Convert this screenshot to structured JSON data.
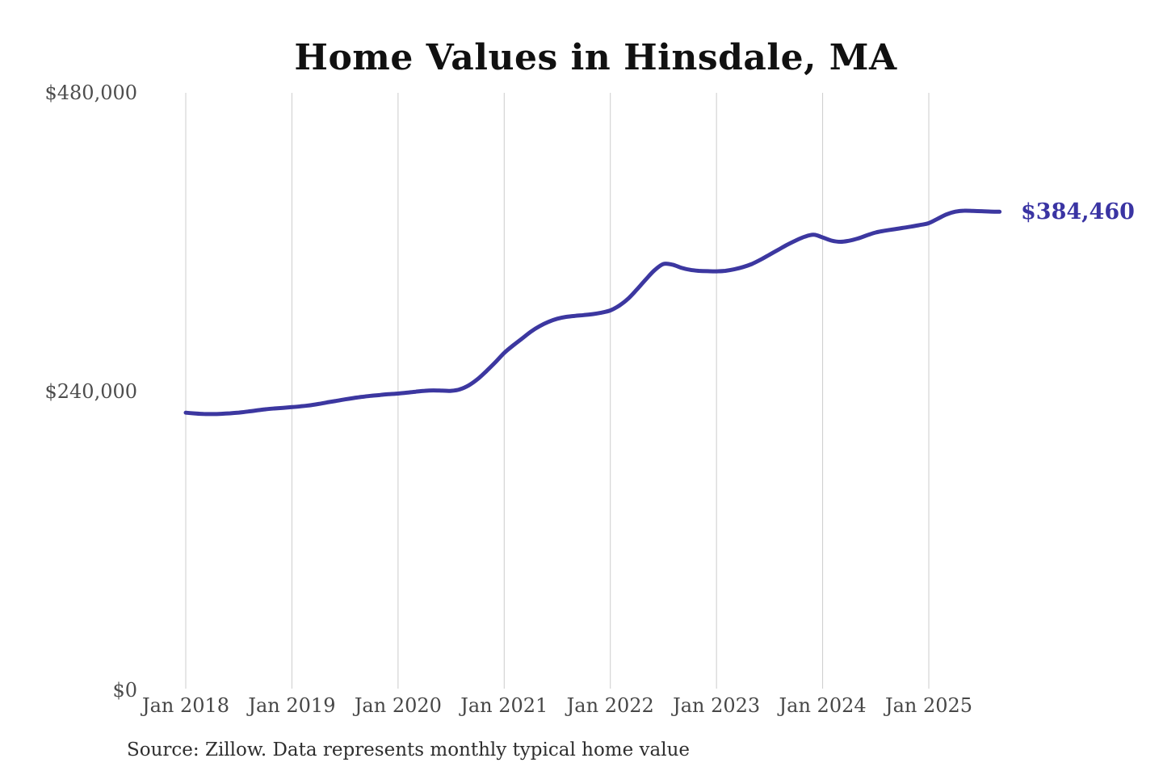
{
  "page": {
    "title": "Home Values in Hinsdale, MA",
    "source_note": "Source: Zillow. Data represents monthly typical home value"
  },
  "chart_data": {
    "type": "line",
    "title": "Home Values in Hinsdale, MA",
    "series_name": "Monthly typical home value",
    "unit": "USD",
    "ylim": [
      0,
      480000
    ],
    "grid": "vertical-yearly",
    "legend": "none",
    "end_label": "$384,460",
    "final_value": 384460,
    "line_color": "#3c37a0",
    "grid_color": "#cccccc",
    "end_label_color": "#3a34a3",
    "y_ticks": [
      {
        "value": 0,
        "label": "$0"
      },
      {
        "value": 240000,
        "label": "$240,000"
      },
      {
        "value": 480000,
        "label": "$480,000"
      }
    ],
    "x_tick_labels": [
      "Jan 2018",
      "Jan 2019",
      "Jan 2020",
      "Jan 2021",
      "Jan 2022",
      "Jan 2023",
      "Jan 2024",
      "Jan 2025"
    ],
    "months": [
      "Jan 2018",
      "Feb 2018",
      "Mar 2018",
      "Apr 2018",
      "May 2018",
      "Jun 2018",
      "Jul 2018",
      "Aug 2018",
      "Sep 2018",
      "Oct 2018",
      "Nov 2018",
      "Dec 2018",
      "Jan 2019",
      "Feb 2019",
      "Mar 2019",
      "Apr 2019",
      "May 2019",
      "Jun 2019",
      "Jul 2019",
      "Aug 2019",
      "Sep 2019",
      "Oct 2019",
      "Nov 2019",
      "Dec 2019",
      "Jan 2020",
      "Feb 2020",
      "Mar 2020",
      "Apr 2020",
      "May 2020",
      "Jun 2020",
      "Jul 2020",
      "Aug 2020",
      "Sep 2020",
      "Oct 2020",
      "Nov 2020",
      "Dec 2020",
      "Jan 2021",
      "Feb 2021",
      "Mar 2021",
      "Apr 2021",
      "May 2021",
      "Jun 2021",
      "Jul 2021",
      "Aug 2021",
      "Sep 2021",
      "Oct 2021",
      "Nov 2021",
      "Dec 2021",
      "Jan 2022",
      "Feb 2022",
      "Mar 2022",
      "Apr 2022",
      "May 2022",
      "Jun 2022",
      "Jul 2022",
      "Aug 2022",
      "Sep 2022",
      "Oct 2022",
      "Nov 2022",
      "Dec 2022",
      "Jan 2023",
      "Feb 2023",
      "Mar 2023",
      "Apr 2023",
      "May 2023",
      "Jun 2023",
      "Jul 2023",
      "Aug 2023",
      "Sep 2023",
      "Oct 2023",
      "Nov 2023",
      "Dec 2023",
      "Jan 2024",
      "Feb 2024",
      "Mar 2024",
      "Apr 2024",
      "May 2024",
      "Jun 2024",
      "Jul 2024",
      "Aug 2024",
      "Sep 2024",
      "Oct 2024",
      "Nov 2024",
      "Dec 2024",
      "Jan 2025",
      "Feb 2025",
      "Mar 2025",
      "Apr 2025",
      "May 2025",
      "Jun 2025",
      "Jul 2025",
      "Aug 2025",
      "Sep 2025"
    ],
    "values": [
      223000,
      222400,
      222000,
      221900,
      222100,
      222500,
      223100,
      223900,
      224800,
      225700,
      226400,
      226900,
      227500,
      228100,
      228900,
      230000,
      231300,
      232500,
      233700,
      234800,
      235800,
      236600,
      237300,
      237900,
      238400,
      239100,
      239900,
      240600,
      240900,
      240700,
      240600,
      241800,
      245000,
      250000,
      256500,
      263500,
      271000,
      277000,
      282500,
      288000,
      292500,
      296000,
      298500,
      300000,
      300800,
      301400,
      302200,
      303400,
      305200,
      309000,
      314500,
      322000,
      330000,
      337500,
      342500,
      342000,
      339500,
      337800,
      337000,
      336700,
      336600,
      337000,
      338200,
      340000,
      342500,
      346000,
      350000,
      354000,
      358000,
      361500,
      364500,
      366000,
      363800,
      361300,
      360300,
      361200,
      363000,
      365500,
      367800,
      369200,
      370300,
      371400,
      372500,
      373800,
      375300,
      378800,
      382300,
      384500,
      385300,
      385100,
      384900,
      384600,
      384460
    ]
  }
}
